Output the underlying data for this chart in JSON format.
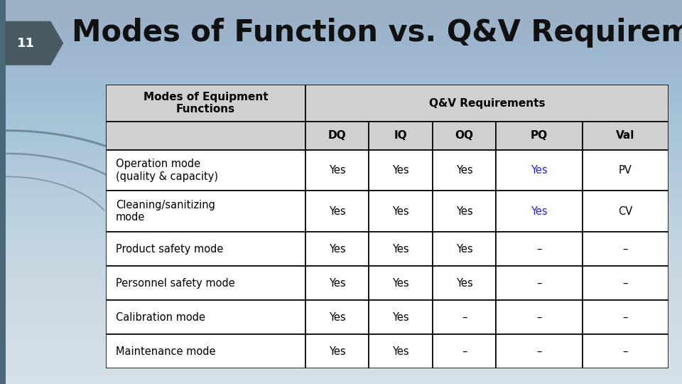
{
  "title": "Modes of Function vs. Q&V Requirements",
  "slide_number": "11",
  "title_fontsize": 30,
  "title_color": "#111111",
  "background_top": "#cdd8e0",
  "background_bottom": "#dde8f0",
  "slide_number_bg": "#4a5a65",
  "slide_number_color": "#ffffff",
  "header_bg": "#d0d0d0",
  "header_row1": [
    "Modes of Equipment\nFunctions",
    "Q&V Requirements"
  ],
  "header_row2": [
    "DQ",
    "IQ",
    "OQ",
    "PQ",
    "Val"
  ],
  "rows": [
    [
      "Operation mode\n(quality & capacity)",
      "Yes",
      "Yes",
      "Yes",
      "Yes",
      "PV"
    ],
    [
      "Cleaning/sanitizing\nmode",
      "Yes",
      "Yes",
      "Yes",
      "Yes",
      "CV"
    ],
    [
      "Product safety mode",
      "Yes",
      "Yes",
      "Yes",
      "–",
      "–"
    ],
    [
      "Personnel safety mode",
      "Yes",
      "Yes",
      "Yes",
      "–",
      "–"
    ],
    [
      "Calibration mode",
      "Yes",
      "Yes",
      "–",
      "–",
      "–"
    ],
    [
      "Maintenance mode",
      "Yes",
      "Yes",
      "–",
      "–",
      "–"
    ]
  ],
  "blue_rows": [
    0,
    1
  ],
  "blue_color": "#2222cc",
  "arc_color": "#6a8090",
  "left_bar_color": "#4a6878"
}
